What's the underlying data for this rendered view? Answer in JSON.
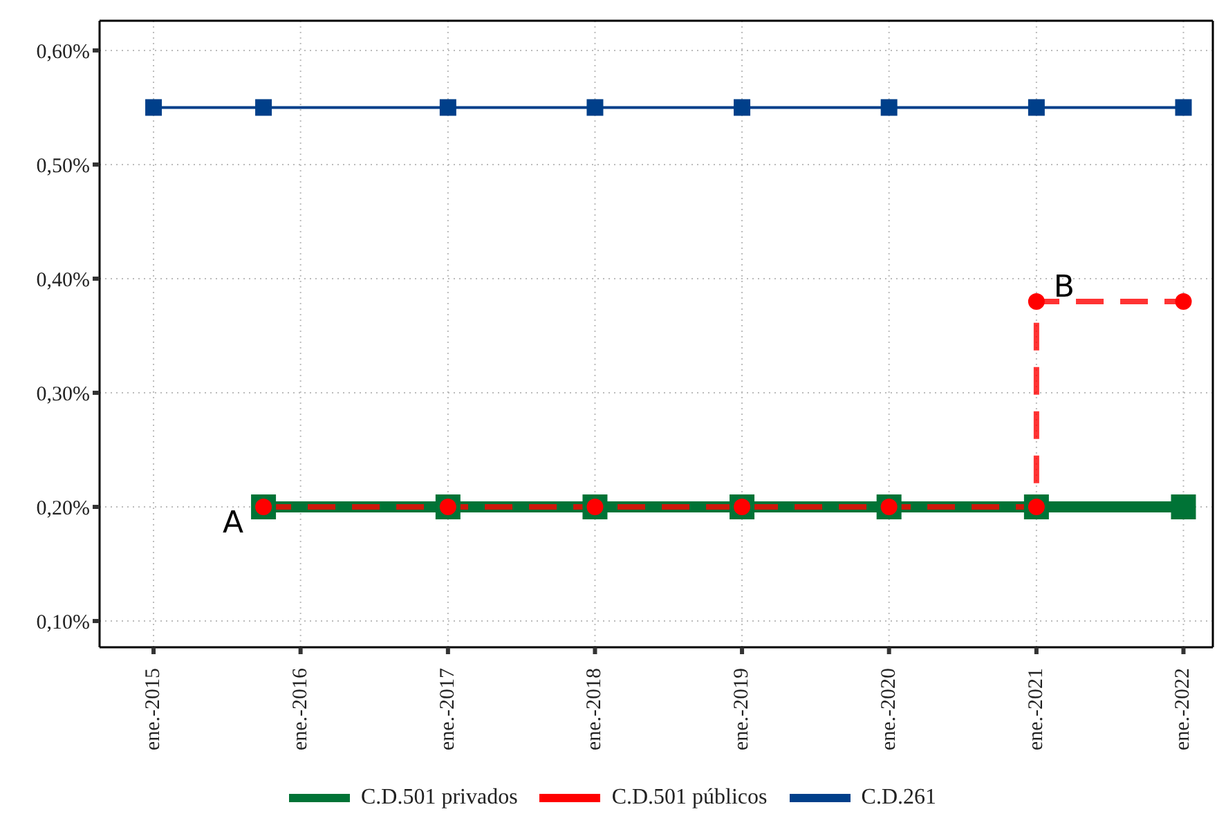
{
  "chart_data": {
    "type": "line",
    "series": [
      {
        "name": "C.D.501 privados",
        "color": "#007336",
        "marker": "square",
        "line_style": "solid",
        "x": [
          "2015-10",
          "2017-01",
          "2018-01",
          "2019-01",
          "2020-01",
          "2021-01",
          "2022-01"
        ],
        "values": [
          0.2,
          0.2,
          0.2,
          0.2,
          0.2,
          0.2,
          0.2
        ]
      },
      {
        "name": "C.D.501 públicos",
        "color": "#ff0000",
        "marker": "circle",
        "line_style": "dashed",
        "x": [
          "2015-10",
          "2017-01",
          "2018-01",
          "2019-01",
          "2020-01",
          "2021-01",
          "2021-01",
          "2022-01"
        ],
        "values": [
          0.2,
          0.2,
          0.2,
          0.2,
          0.2,
          0.2,
          0.38,
          0.38
        ]
      },
      {
        "name": "C.D.261",
        "color": "#003f8a",
        "marker": "square",
        "line_style": "solid",
        "x": [
          "2015-01",
          "2015-10",
          "2017-01",
          "2018-01",
          "2019-01",
          "2020-01",
          "2021-01",
          "2022-01"
        ],
        "values": [
          0.55,
          0.55,
          0.55,
          0.55,
          0.55,
          0.55,
          0.55,
          0.55
        ]
      }
    ],
    "xlim": [
      "2014-08-20",
      "2022-03-15"
    ],
    "xticks": [
      {
        "value": "2015-01",
        "label": "ene.-2015"
      },
      {
        "value": "2016-01",
        "label": "ene.-2016"
      },
      {
        "value": "2017-01",
        "label": "ene.-2017"
      },
      {
        "value": "2018-01",
        "label": "ene.-2018"
      },
      {
        "value": "2019-01",
        "label": "ene.-2019"
      },
      {
        "value": "2020-01",
        "label": "ene.-2020"
      },
      {
        "value": "2021-01",
        "label": "ene.-2021"
      },
      {
        "value": "2022-01",
        "label": "ene.-2022"
      }
    ],
    "ylim": [
      0.077,
      0.626
    ],
    "yticks": [
      {
        "value": 0.1,
        "label": "0,10%"
      },
      {
        "value": 0.2,
        "label": "0,20%"
      },
      {
        "value": 0.3,
        "label": "0,30%"
      },
      {
        "value": 0.4,
        "label": "0,40%"
      },
      {
        "value": 0.5,
        "label": "0,50%"
      },
      {
        "value": 0.6,
        "label": "0,60%"
      }
    ],
    "annotations": [
      {
        "text": "A",
        "x": "2015-10",
        "y": 0.2
      },
      {
        "text": "B",
        "x": "2021-01",
        "y": 0.38
      }
    ],
    "grid": true,
    "legend": "bottom"
  }
}
